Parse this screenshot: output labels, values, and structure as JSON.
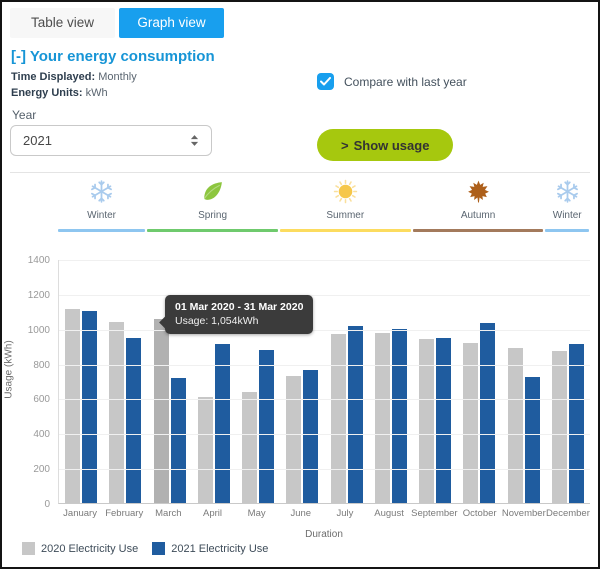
{
  "tabs": {
    "table_label": "Table view",
    "graph_label": "Graph view",
    "active": "Graph view"
  },
  "header": {
    "title": "[-] Your energy consumption",
    "meta": [
      {
        "label": "Time Displayed:",
        "value": "Monthly"
      },
      {
        "label": "Energy Units:",
        "value": "kWh"
      }
    ]
  },
  "compare_checkbox": {
    "label": "Compare with last year",
    "checked": true
  },
  "year_field": {
    "label": "Year",
    "value": "2021"
  },
  "show_usage_button": {
    "chevron": ">",
    "label": "Show usage"
  },
  "colors": {
    "accent_blue": "#189fee",
    "heading_blue": "#1795d6",
    "button_green": "#a6c80e",
    "bar_gray": "#c7c7c7",
    "bar_gray_highlight": "#b1b1b1",
    "bar_blue": "#1f5c9f"
  },
  "seasons": [
    {
      "label": "Winter",
      "icon": "snowflake-icon",
      "icon_color": "#a9cbed",
      "underline_color": "#8ec6f0",
      "span": 2
    },
    {
      "label": "Spring",
      "icon": "leaf-icon",
      "icon_color": "#8dc63f",
      "underline_color": "#6fca6d",
      "span": 3
    },
    {
      "label": "Summer",
      "icon": "sun-icon",
      "icon_color": "#f6c74a",
      "underline_color": "#fcdc5f",
      "span": 3
    },
    {
      "label": "Autumn",
      "icon": "maple-leaf-icon",
      "icon_color": "#ad5f1a",
      "underline_color": "#a37a5c",
      "span": 3
    },
    {
      "label": "Winter",
      "icon": "snowflake-icon",
      "icon_color": "#a9cbed",
      "underline_color": "#8ec6f0",
      "span": 1
    }
  ],
  "tooltip": {
    "title": "01 Mar 2020 - 31 Mar 2020",
    "value": "Usage: 1,054kWh"
  },
  "chart_data": {
    "type": "bar",
    "categories": [
      "January",
      "February",
      "March",
      "April",
      "May",
      "June",
      "July",
      "August",
      "September",
      "October",
      "November",
      "December"
    ],
    "series": [
      {
        "name": "2020 Electricity Use",
        "color": "#c7c7c7",
        "values": [
          1115,
          1040,
          1054,
          610,
          635,
          730,
          970,
          975,
          940,
          920,
          890,
          875
        ]
      },
      {
        "name": "2021 Electricity Use",
        "color": "#1f5c9f",
        "values": [
          1100,
          945,
          720,
          915,
          880,
          765,
          1015,
          1000,
          945,
          1035,
          725,
          910
        ]
      }
    ],
    "highlight": {
      "series": "2020 Electricity Use",
      "category": "March",
      "color": "#b1b1b1"
    },
    "title": "",
    "xlabel": "Duration",
    "ylabel": "Usage (kWh)",
    "ylim": [
      0,
      1400
    ],
    "ytick_step": 200,
    "grid": true,
    "legend_position": "bottom"
  }
}
